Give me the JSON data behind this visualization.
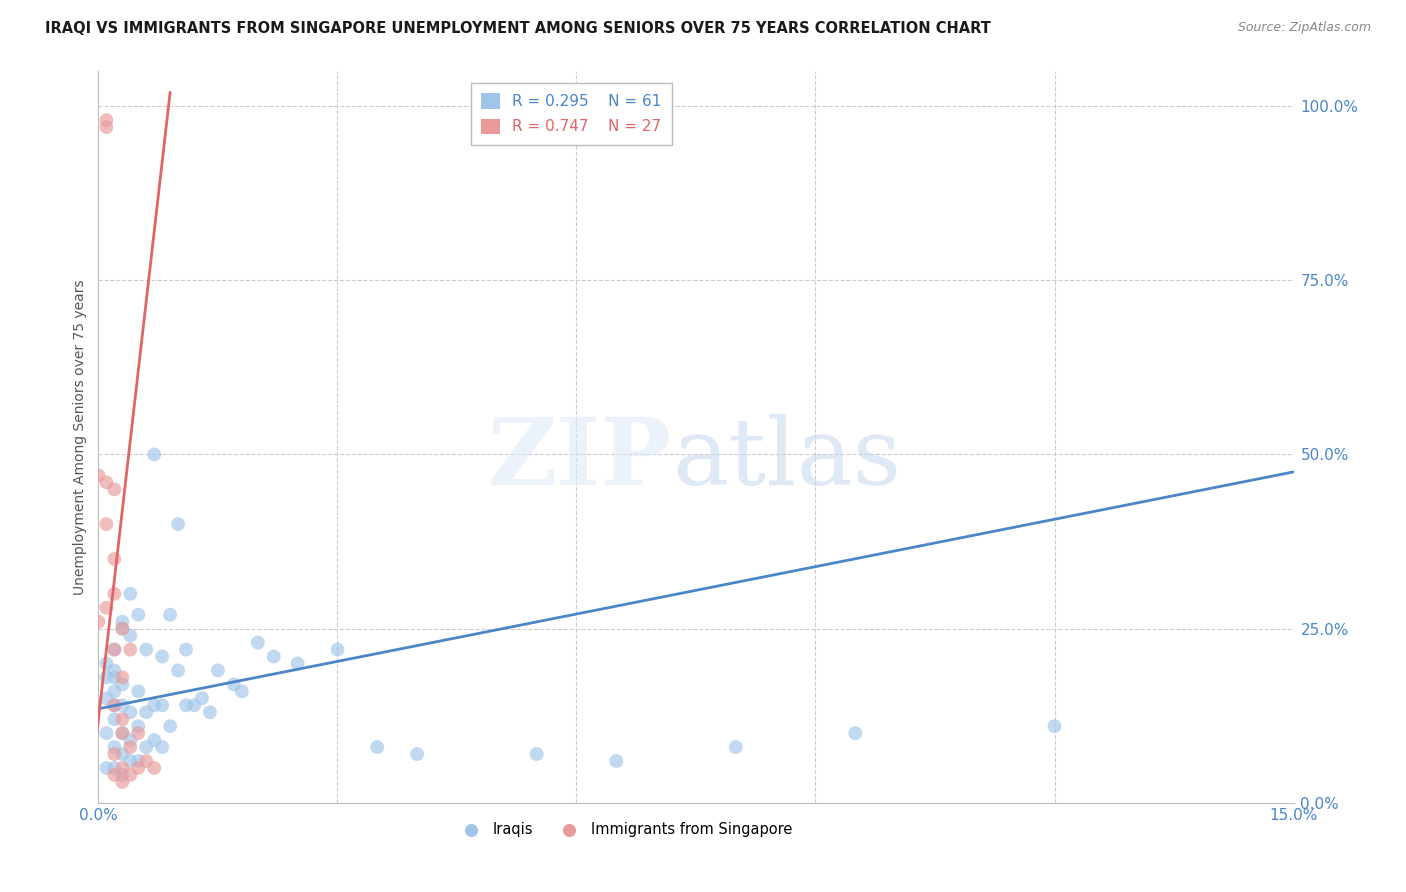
{
  "title": "IRAQI VS IMMIGRANTS FROM SINGAPORE UNEMPLOYMENT AMONG SENIORS OVER 75 YEARS CORRELATION CHART",
  "source": "Source: ZipAtlas.com",
  "ylabel": "Unemployment Among Seniors over 75 years",
  "xlim": [
    0.0,
    0.15
  ],
  "ylim": [
    0.0,
    1.05
  ],
  "iraqis_color": "#9fc5e8",
  "singapore_color": "#ea9999",
  "iraqis_line_color": "#4a86c8",
  "singapore_line_color": "#e06666",
  "legend_iraqis_R": "0.295",
  "legend_iraqis_N": "61",
  "legend_singapore_R": "0.747",
  "legend_singapore_N": "27",
  "iraqis_x": [
    0.001,
    0.001,
    0.001,
    0.001,
    0.001,
    0.002,
    0.002,
    0.002,
    0.002,
    0.002,
    0.002,
    0.002,
    0.003,
    0.003,
    0.003,
    0.003,
    0.003,
    0.003,
    0.004,
    0.004,
    0.004,
    0.004,
    0.004,
    0.005,
    0.005,
    0.005,
    0.005,
    0.006,
    0.006,
    0.006,
    0.007,
    0.007,
    0.007,
    0.008,
    0.008,
    0.008,
    0.009,
    0.009,
    0.01,
    0.01,
    0.011,
    0.011,
    0.012,
    0.013,
    0.014,
    0.015,
    0.017,
    0.018,
    0.02,
    0.022,
    0.025,
    0.03,
    0.035,
    0.04,
    0.055,
    0.065,
    0.08,
    0.095,
    0.12,
    0.002,
    0.003
  ],
  "iraqis_y": [
    0.05,
    0.1,
    0.15,
    0.2,
    0.18,
    0.05,
    0.08,
    0.12,
    0.16,
    0.19,
    0.22,
    0.14,
    0.04,
    0.07,
    0.1,
    0.14,
    0.17,
    0.26,
    0.06,
    0.09,
    0.13,
    0.24,
    0.3,
    0.06,
    0.11,
    0.16,
    0.27,
    0.08,
    0.13,
    0.22,
    0.09,
    0.14,
    0.5,
    0.08,
    0.14,
    0.21,
    0.11,
    0.27,
    0.19,
    0.4,
    0.14,
    0.22,
    0.14,
    0.15,
    0.13,
    0.19,
    0.17,
    0.16,
    0.23,
    0.21,
    0.2,
    0.22,
    0.08,
    0.07,
    0.07,
    0.06,
    0.08,
    0.1,
    0.11,
    0.18,
    0.25
  ],
  "singapore_x": [
    0.0,
    0.0,
    0.001,
    0.001,
    0.001,
    0.001,
    0.001,
    0.002,
    0.002,
    0.002,
    0.002,
    0.002,
    0.002,
    0.003,
    0.003,
    0.003,
    0.003,
    0.003,
    0.004,
    0.004,
    0.004,
    0.005,
    0.005,
    0.006,
    0.007,
    0.002,
    0.003
  ],
  "singapore_y": [
    0.47,
    0.26,
    0.97,
    0.98,
    0.46,
    0.4,
    0.28,
    0.45,
    0.35,
    0.22,
    0.14,
    0.07,
    0.04,
    0.25,
    0.18,
    0.1,
    0.05,
    0.03,
    0.22,
    0.08,
    0.04,
    0.1,
    0.05,
    0.06,
    0.05,
    0.3,
    0.12
  ],
  "iraqis_trend_x": [
    0.0,
    0.15
  ],
  "iraqis_trend_y": [
    0.135,
    0.475
  ],
  "singapore_trend_x": [
    -0.001,
    0.009
  ],
  "singapore_trend_y": [
    0.02,
    1.02
  ]
}
